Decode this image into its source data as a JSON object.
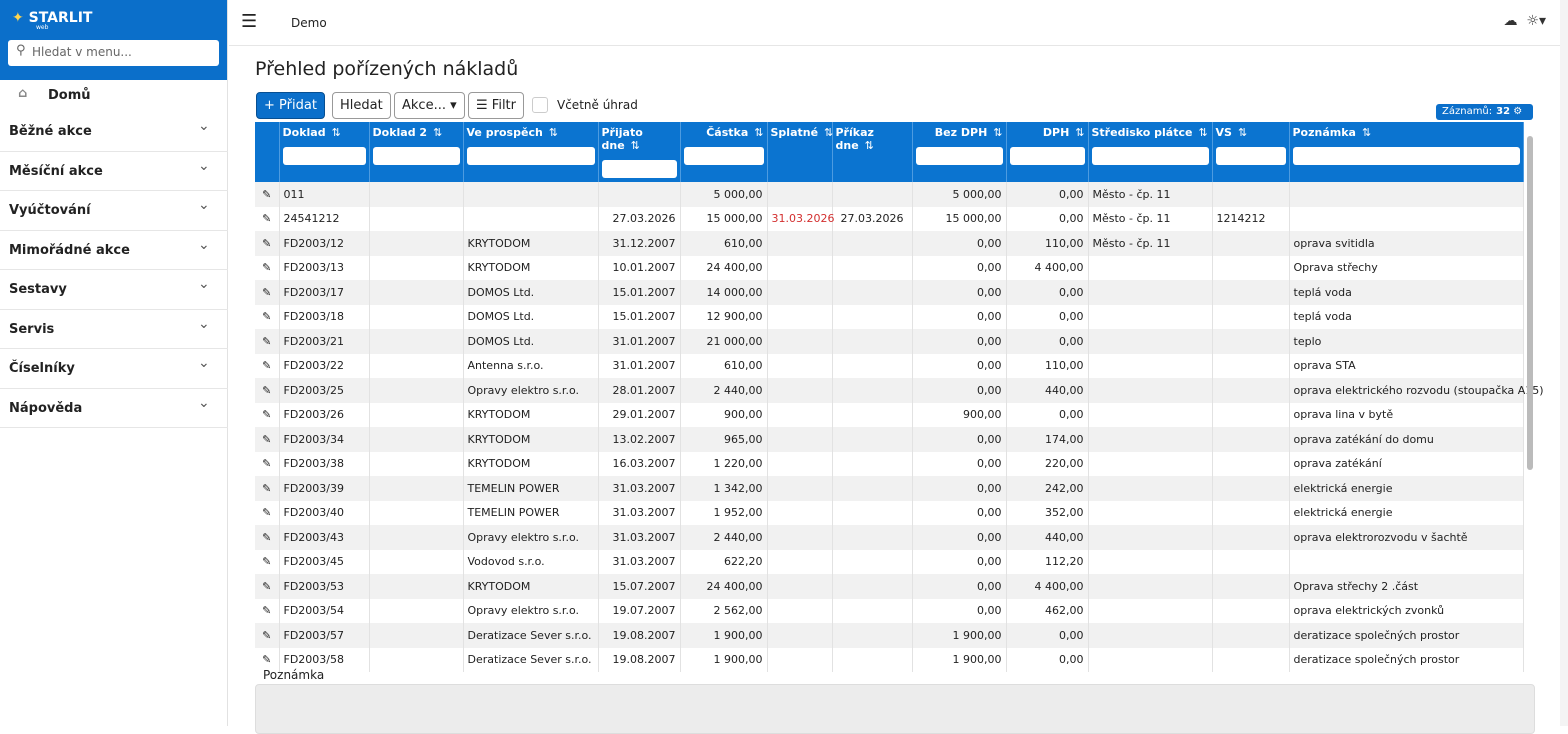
{
  "sidebar": {
    "brand": "STARLIT",
    "brand_sub": "web",
    "search_placeholder": "Hledat v menu...",
    "home": "Domů",
    "menu": [
      "Běžné akce",
      "Měsíční akce",
      "Vyúčtování",
      "Mimořádné akce",
      "Sestavy",
      "Servis",
      "Číselníky",
      "Nápověda"
    ]
  },
  "topbar": {
    "title": "Demo"
  },
  "page": {
    "title": "Přehled pořízených nákladů",
    "toolbar": {
      "add": "Přidat",
      "search": "Hledat",
      "actions": "Akce...",
      "filter": "Filtr",
      "include_payments": "Včetně úhrad"
    },
    "records_label": "Záznamů:",
    "records_count": 32,
    "table": {
      "columns": [
        "Doklad",
        "Doklad 2",
        "Ve prospěch",
        "Přijato dne",
        "Částka",
        "Splatné",
        "Příkaz dne",
        "Bez DPH",
        "DPH",
        "Středisko plátce",
        "VS",
        "Poznámka"
      ],
      "rows": [
        [
          "011",
          null,
          null,
          null,
          "5 000,00",
          null,
          null,
          "5 000,00",
          "0,00",
          "Město - čp. 11",
          null,
          null
        ],
        [
          "24541212",
          null,
          null,
          "27.03.2026",
          "15 000,00",
          "31.03.2026",
          "27.03.2026",
          "15 000,00",
          "0,00",
          "Město - čp. 11",
          "1214212",
          null
        ],
        [
          "FD2003/12",
          null,
          "KRYTODOM",
          "31.12.2007",
          "610,00",
          null,
          null,
          "0,00",
          "110,00",
          "Město - čp. 11",
          null,
          "oprava svitidla"
        ],
        [
          "FD2003/13",
          null,
          "KRYTODOM",
          "10.01.2007",
          "24 400,00",
          null,
          null,
          "0,00",
          "4 400,00",
          null,
          null,
          "Oprava střechy"
        ],
        [
          "FD2003/17",
          null,
          "DOMOS Ltd.",
          "15.01.2007",
          "14 000,00",
          null,
          null,
          "0,00",
          "0,00",
          null,
          null,
          "teplá voda"
        ],
        [
          "FD2003/18",
          null,
          "DOMOS Ltd.",
          "15.01.2007",
          "12 900,00",
          null,
          null,
          "0,00",
          "0,00",
          null,
          null,
          "teplá voda"
        ],
        [
          "FD2003/21",
          null,
          "DOMOS Ltd.",
          "31.01.2007",
          "21 000,00",
          null,
          null,
          "0,00",
          "0,00",
          null,
          null,
          "teplo"
        ],
        [
          "FD2003/22",
          null,
          "Antenna s.r.o.",
          "31.01.2007",
          "610,00",
          null,
          null,
          "0,00",
          "110,00",
          null,
          null,
          "oprava STA"
        ],
        [
          "FD2003/25",
          null,
          "Opravy elektro s.r.o.",
          "28.01.2007",
          "2 440,00",
          null,
          null,
          "0,00",
          "440,00",
          null,
          null,
          "oprava elektrického rozvodu (stoupačka A15)"
        ],
        [
          "FD2003/26",
          null,
          "KRYTODOM",
          "29.01.2007",
          "900,00",
          null,
          null,
          "900,00",
          "0,00",
          null,
          null,
          "oprava lina v bytě"
        ],
        [
          "FD2003/34",
          null,
          "KRYTODOM",
          "13.02.2007",
          "965,00",
          null,
          null,
          "0,00",
          "174,00",
          null,
          null,
          "oprava zatékání do domu"
        ],
        [
          "FD2003/38",
          null,
          "KRYTODOM",
          "16.03.2007",
          "1 220,00",
          null,
          null,
          "0,00",
          "220,00",
          null,
          null,
          "oprava zatékání"
        ],
        [
          "FD2003/39",
          null,
          "TEMELIN POWER",
          "31.03.2007",
          "1 342,00",
          null,
          null,
          "0,00",
          "242,00",
          null,
          null,
          "elektrická energie"
        ],
        [
          "FD2003/40",
          null,
          "TEMELIN POWER",
          "31.03.2007",
          "1 952,00",
          null,
          null,
          "0,00",
          "352,00",
          null,
          null,
          "elektrická energie"
        ],
        [
          "FD2003/43",
          null,
          "Opravy elektro s.r.o.",
          "31.03.2007",
          "2 440,00",
          null,
          null,
          "0,00",
          "440,00",
          null,
          null,
          "oprava elektrorozvodu v šachtě"
        ],
        [
          "FD2003/45",
          null,
          "Vodovod s.r.o.",
          "31.03.2007",
          "622,20",
          null,
          null,
          "0,00",
          "112,20",
          null,
          null,
          null
        ],
        [
          "FD2003/53",
          null,
          "KRYTODOM",
          "15.07.2007",
          "24 400,00",
          null,
          null,
          "0,00",
          "4 400,00",
          null,
          null,
          "Oprava střechy 2 .část"
        ],
        [
          "FD2003/54",
          null,
          "Opravy elektro s.r.o.",
          "19.07.2007",
          "2 562,00",
          null,
          null,
          "0,00",
          "462,00",
          null,
          null,
          "oprava elektrických zvonků"
        ],
        [
          "FD2003/57",
          null,
          "Deratizace Sever s.r.o.",
          "19.08.2007",
          "1 900,00",
          null,
          null,
          "1 900,00",
          "0,00",
          null,
          null,
          "deratizace společných prostor"
        ],
        [
          "FD2003/58",
          null,
          "Deratizace Sever s.r.o.",
          "19.08.2007",
          "1 900,00",
          null,
          null,
          "1 900,00",
          "0,00",
          null,
          null,
          "deratizace společných prostor"
        ]
      ]
    },
    "note_label": "Poznámka"
  }
}
